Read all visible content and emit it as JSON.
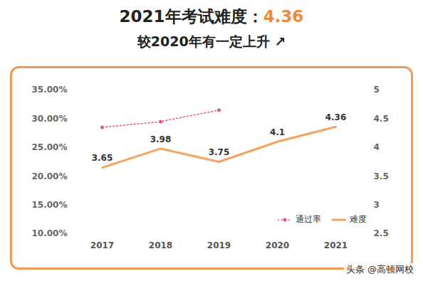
{
  "chart_data": {
    "type": "line",
    "title": "2021年考试难度：4.36",
    "subtitle": "较2020年有一定上升 ↗",
    "caption": "头条 @高顿网校",
    "categories": [
      "2017",
      "2018",
      "2019",
      "2020",
      "2021"
    ],
    "series": [
      {
        "name": "通过率",
        "color": "#e9577f",
        "values": [
          28.5,
          29.5,
          31.5,
          null,
          null
        ],
        "axis": "y",
        "line_style": "dotted",
        "marker": "circle"
      },
      {
        "name": "难度",
        "color": "#f5a25d",
        "values": [
          3.65,
          3.98,
          3.75,
          4.1,
          4.36
        ],
        "axis": "y2",
        "line_style": "solid",
        "data_labels": true
      }
    ],
    "ylim": [
      10,
      35
    ],
    "yticks": [
      {
        "value": 10,
        "label": "10.00%"
      },
      {
        "value": 15,
        "label": "15.00%"
      },
      {
        "value": 20,
        "label": "20.00%"
      },
      {
        "value": 25,
        "label": "25.00%"
      },
      {
        "value": 30,
        "label": "30.00%"
      },
      {
        "value": 35,
        "label": "35.00%"
      }
    ],
    "y2lim": [
      2.5,
      5
    ],
    "y2ticks": [
      2.5,
      3,
      3.5,
      4,
      4.5,
      5
    ],
    "grid": false,
    "legend": "lower right"
  }
}
